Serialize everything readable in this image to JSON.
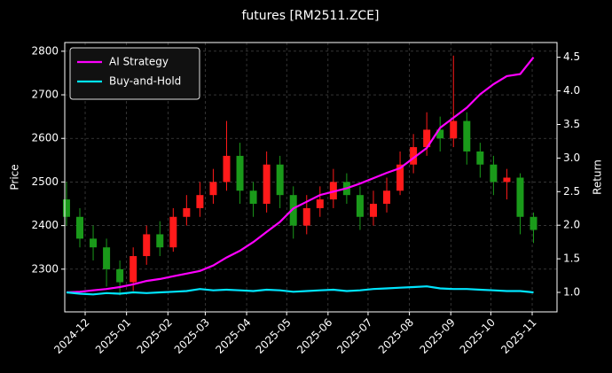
{
  "chart_data": {
    "type": "candlestick",
    "title": "futures [RM2511.ZCE]",
    "ylabel": "Price",
    "y2label": "Return",
    "x": [
      -14,
      -4,
      6,
      16,
      26,
      36,
      46,
      56,
      66,
      76,
      86,
      96,
      106,
      116,
      126,
      136,
      146,
      156,
      166,
      176,
      186,
      196,
      206,
      216,
      226,
      236,
      246,
      256,
      266,
      276,
      286,
      296,
      306,
      316,
      326,
      336
    ],
    "open": [
      2460,
      2420,
      2370,
      2350,
      2300,
      2270,
      2330,
      2380,
      2350,
      2420,
      2440,
      2470,
      2500,
      2560,
      2480,
      2450,
      2540,
      2470,
      2400,
      2440,
      2460,
      2500,
      2470,
      2420,
      2450,
      2480,
      2540,
      2580,
      2620,
      2600,
      2640,
      2570,
      2540,
      2500,
      2510,
      2420
    ],
    "high": [
      2500,
      2440,
      2400,
      2370,
      2320,
      2350,
      2400,
      2410,
      2440,
      2470,
      2500,
      2530,
      2640,
      2590,
      2500,
      2570,
      2560,
      2490,
      2470,
      2490,
      2530,
      2520,
      2490,
      2480,
      2510,
      2570,
      2610,
      2660,
      2650,
      2790,
      2660,
      2590,
      2560,
      2530,
      2520,
      2430
    ],
    "low": [
      2400,
      2350,
      2320,
      2260,
      2240,
      2250,
      2310,
      2330,
      2340,
      2400,
      2420,
      2450,
      2480,
      2450,
      2420,
      2430,
      2440,
      2370,
      2380,
      2420,
      2440,
      2450,
      2390,
      2400,
      2430,
      2470,
      2520,
      2560,
      2570,
      2580,
      2540,
      2510,
      2470,
      2460,
      2380,
      2360
    ],
    "close": [
      2420,
      2370,
      2350,
      2300,
      2270,
      2330,
      2380,
      2350,
      2420,
      2440,
      2470,
      2500,
      2560,
      2480,
      2450,
      2540,
      2470,
      2400,
      2440,
      2460,
      2500,
      2470,
      2420,
      2450,
      2480,
      2540,
      2580,
      2620,
      2600,
      2640,
      2570,
      2540,
      2500,
      2510,
      2420,
      2390
    ],
    "up_color": "#ff1a1a",
    "down_color": "#1a9a1a",
    "lines": [
      {
        "name": "AI Strategy",
        "color": "#ff00ff",
        "axis": "y2",
        "values": [
          1.0,
          1.01,
          1.03,
          1.05,
          1.08,
          1.12,
          1.17,
          1.2,
          1.24,
          1.28,
          1.32,
          1.4,
          1.52,
          1.62,
          1.75,
          1.9,
          2.05,
          2.25,
          2.35,
          2.45,
          2.5,
          2.55,
          2.62,
          2.7,
          2.78,
          2.85,
          3.0,
          3.15,
          3.45,
          3.6,
          3.75,
          3.95,
          4.1,
          4.22,
          4.25,
          4.5
        ]
      },
      {
        "name": "Buy-and-Hold",
        "color": "#00e5ff",
        "axis": "y2",
        "values": [
          1.0,
          0.98,
          0.97,
          0.99,
          0.98,
          1.0,
          0.99,
          1.0,
          1.01,
          1.02,
          1.05,
          1.03,
          1.04,
          1.03,
          1.02,
          1.04,
          1.03,
          1.01,
          1.02,
          1.03,
          1.04,
          1.02,
          1.03,
          1.05,
          1.06,
          1.07,
          1.08,
          1.09,
          1.06,
          1.05,
          1.05,
          1.04,
          1.03,
          1.02,
          1.02,
          1.0
        ]
      }
    ],
    "xlim": [
      -15.3,
      353.6
    ],
    "xticks": [
      {
        "value": 0,
        "label": "2024-12"
      },
      {
        "value": 31,
        "label": "2025-01"
      },
      {
        "value": 62,
        "label": "2025-02"
      },
      {
        "value": 90,
        "label": "2025-03"
      },
      {
        "value": 121,
        "label": "2025-04"
      },
      {
        "value": 151,
        "label": "2025-05"
      },
      {
        "value": 182,
        "label": "2025-06"
      },
      {
        "value": 212,
        "label": "2025-07"
      },
      {
        "value": 243,
        "label": "2025-08"
      },
      {
        "value": 274,
        "label": "2025-09"
      },
      {
        "value": 304,
        "label": "2025-10"
      },
      {
        "value": 335,
        "label": "2025-11"
      }
    ],
    "ylim": [
      2202,
      2820
    ],
    "yticks": [
      2300,
      2400,
      2500,
      2600,
      2700,
      2800
    ],
    "y2lim": [
      0.71,
      4.72
    ],
    "y2ticks": [
      {
        "value": 1,
        "label": "1.0"
      },
      1.5,
      {
        "value": 2,
        "label": "2.0"
      },
      2.5,
      {
        "value": 3,
        "label": "3.0"
      },
      3.5,
      {
        "value": 4,
        "label": "4.0"
      },
      4.5
    ],
    "grid": true,
    "legend": "upper left"
  }
}
